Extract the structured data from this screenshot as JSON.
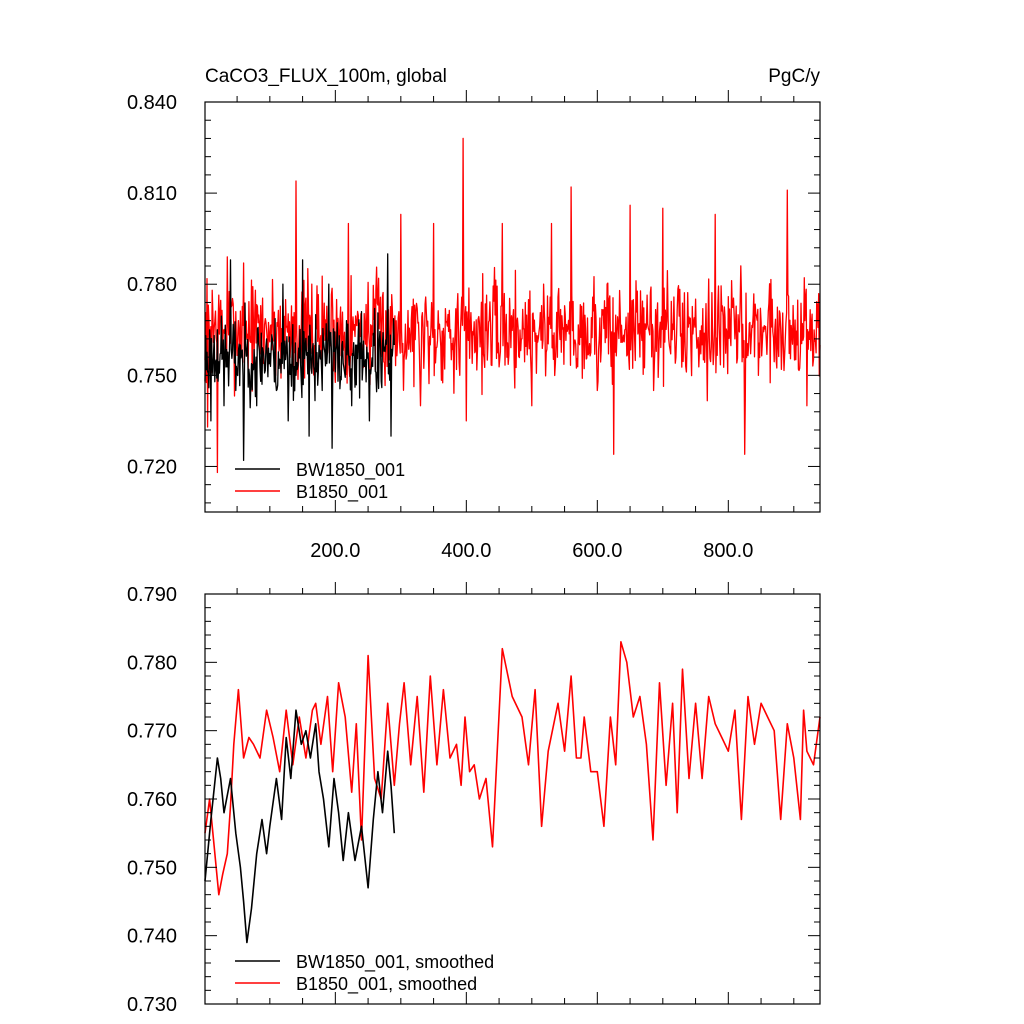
{
  "figure": {
    "title_left": "CaCO3_FLUX_100m, global",
    "title_right": "PgC/y"
  },
  "colors": {
    "bw1850": "#000000",
    "b1850": "#ff0000",
    "axes": "#000000",
    "background": "#ffffff"
  },
  "chart_data": [
    {
      "type": "line",
      "title": "CaCO3_FLUX_100m, global",
      "units": "PgC/y",
      "xlim": [
        1,
        940
      ],
      "ylim": [
        0.705,
        0.84
      ],
      "x_ticks": [
        200,
        400,
        600,
        800
      ],
      "x_tick_labels": [
        "200.0",
        "400.0",
        "600.0",
        "800.0"
      ],
      "y_ticks": [
        0.72,
        0.75,
        0.78,
        0.81,
        0.84
      ],
      "y_tick_labels": [
        "0.720",
        "0.750",
        "0.780",
        "0.810",
        "0.840"
      ],
      "legend_position": "lower-left",
      "series": [
        {
          "name": "BW1850_001",
          "color": "#000000",
          "x_range": [
            1,
            290
          ],
          "mean": 0.756,
          "spread": 0.012,
          "min": 0.722,
          "max": 0.79,
          "keypoints": [
            [
              1,
              0.748
            ],
            [
              10,
              0.735
            ],
            [
              20,
              0.765
            ],
            [
              30,
              0.74
            ],
            [
              40,
              0.788
            ],
            [
              48,
              0.745
            ],
            [
              55,
              0.76
            ],
            [
              60,
              0.722
            ],
            [
              68,
              0.752
            ],
            [
              80,
              0.74
            ],
            [
              95,
              0.762
            ],
            [
              110,
              0.745
            ],
            [
              120,
              0.78
            ],
            [
              128,
              0.735
            ],
            [
              140,
              0.75
            ],
            [
              150,
              0.788
            ],
            [
              160,
              0.73
            ],
            [
              170,
              0.77
            ],
            [
              180,
              0.745
            ],
            [
              190,
              0.78
            ],
            [
              195,
              0.726
            ],
            [
              210,
              0.76
            ],
            [
              225,
              0.74
            ],
            [
              240,
              0.771
            ],
            [
              252,
              0.735
            ],
            [
              260,
              0.772
            ],
            [
              270,
              0.748
            ],
            [
              280,
              0.79
            ],
            [
              285,
              0.73
            ],
            [
              290,
              0.76
            ]
          ]
        },
        {
          "name": "B1850_001",
          "color": "#ff0000",
          "x_range": [
            1,
            940
          ],
          "mean": 0.765,
          "spread": 0.016,
          "min": 0.718,
          "max": 0.828,
          "keypoints": [
            [
              1,
              0.755
            ],
            [
              5,
              0.733
            ],
            [
              12,
              0.778
            ],
            [
              20,
              0.718
            ],
            [
              35,
              0.789
            ],
            [
              60,
              0.787
            ],
            [
              140,
              0.814
            ],
            [
              220,
              0.8
            ],
            [
              300,
              0.803
            ],
            [
              330,
              0.74
            ],
            [
              350,
              0.8
            ],
            [
              390,
              0.75
            ],
            [
              395,
              0.828
            ],
            [
              400,
              0.735
            ],
            [
              455,
              0.8
            ],
            [
              500,
              0.74
            ],
            [
              530,
              0.8
            ],
            [
              560,
              0.812
            ],
            [
              600,
              0.745
            ],
            [
              625,
              0.724
            ],
            [
              650,
              0.806
            ],
            [
              700,
              0.805
            ],
            [
              780,
              0.803
            ],
            [
              825,
              0.724
            ],
            [
              890,
              0.811
            ],
            [
              920,
              0.74
            ],
            [
              940,
              0.76
            ]
          ]
        }
      ]
    },
    {
      "type": "line",
      "xlim": [
        1,
        940
      ],
      "ylim": [
        0.73,
        0.79
      ],
      "y_ticks": [
        0.73,
        0.74,
        0.75,
        0.76,
        0.77,
        0.78,
        0.79
      ],
      "y_tick_labels": [
        "0.730",
        "0.740",
        "0.750",
        "0.760",
        "0.770",
        "0.780",
        "0.790"
      ],
      "legend_position": "lower-left",
      "series": [
        {
          "name": "BW1850_001, smoothed",
          "color": "#000000",
          "x": [
            1,
            10,
            20,
            25,
            30,
            40,
            48,
            55,
            60,
            65,
            72,
            80,
            88,
            95,
            100,
            110,
            118,
            125,
            132,
            140,
            148,
            155,
            162,
            170,
            175,
            182,
            190,
            198,
            205,
            212,
            220,
            230,
            240,
            250,
            258,
            265,
            272,
            280,
            285,
            290
          ],
          "y": [
            0.748,
            0.757,
            0.766,
            0.763,
            0.758,
            0.763,
            0.755,
            0.75,
            0.745,
            0.739,
            0.744,
            0.752,
            0.757,
            0.752,
            0.756,
            0.763,
            0.757,
            0.769,
            0.763,
            0.773,
            0.768,
            0.77,
            0.766,
            0.771,
            0.764,
            0.76,
            0.753,
            0.763,
            0.758,
            0.751,
            0.758,
            0.751,
            0.756,
            0.747,
            0.757,
            0.764,
            0.758,
            0.767,
            0.762,
            0.755
          ]
        },
        {
          "name": "B1850_001, smoothed",
          "color": "#ff0000",
          "x": [
            1,
            8,
            15,
            22,
            28,
            35,
            40,
            45,
            52,
            60,
            68,
            75,
            85,
            95,
            105,
            115,
            125,
            135,
            145,
            155,
            165,
            170,
            178,
            188,
            196,
            205,
            215,
            225,
            232,
            240,
            250,
            260,
            270,
            280,
            290,
            298,
            305,
            315,
            325,
            335,
            345,
            355,
            365,
            375,
            385,
            392,
            398,
            405,
            412,
            420,
            430,
            440,
            455,
            470,
            485,
            495,
            505,
            515,
            525,
            540,
            550,
            560,
            568,
            575,
            580,
            590,
            600,
            610,
            620,
            628,
            636,
            645,
            655,
            665,
            675,
            685,
            695,
            705,
            715,
            722,
            730,
            740,
            750,
            760,
            770,
            780,
            790,
            800,
            810,
            820,
            830,
            840,
            850,
            860,
            870,
            880,
            890,
            900,
            910,
            915,
            920,
            930,
            940
          ],
          "y": [
            0.755,
            0.76,
            0.753,
            0.746,
            0.749,
            0.752,
            0.759,
            0.768,
            0.776,
            0.766,
            0.769,
            0.768,
            0.766,
            0.773,
            0.769,
            0.764,
            0.773,
            0.765,
            0.772,
            0.766,
            0.773,
            0.774,
            0.768,
            0.775,
            0.764,
            0.777,
            0.772,
            0.761,
            0.771,
            0.754,
            0.781,
            0.763,
            0.76,
            0.774,
            0.762,
            0.771,
            0.777,
            0.765,
            0.775,
            0.761,
            0.778,
            0.765,
            0.776,
            0.766,
            0.768,
            0.762,
            0.772,
            0.764,
            0.765,
            0.76,
            0.763,
            0.753,
            0.782,
            0.775,
            0.772,
            0.765,
            0.776,
            0.756,
            0.767,
            0.774,
            0.767,
            0.778,
            0.766,
            0.766,
            0.772,
            0.764,
            0.764,
            0.756,
            0.772,
            0.765,
            0.783,
            0.78,
            0.772,
            0.775,
            0.768,
            0.754,
            0.777,
            0.762,
            0.774,
            0.758,
            0.779,
            0.763,
            0.774,
            0.763,
            0.775,
            0.771,
            0.769,
            0.767,
            0.773,
            0.757,
            0.775,
            0.768,
            0.774,
            0.772,
            0.77,
            0.757,
            0.771,
            0.766,
            0.757,
            0.773,
            0.767,
            0.765,
            0.772
          ]
        }
      ]
    }
  ]
}
